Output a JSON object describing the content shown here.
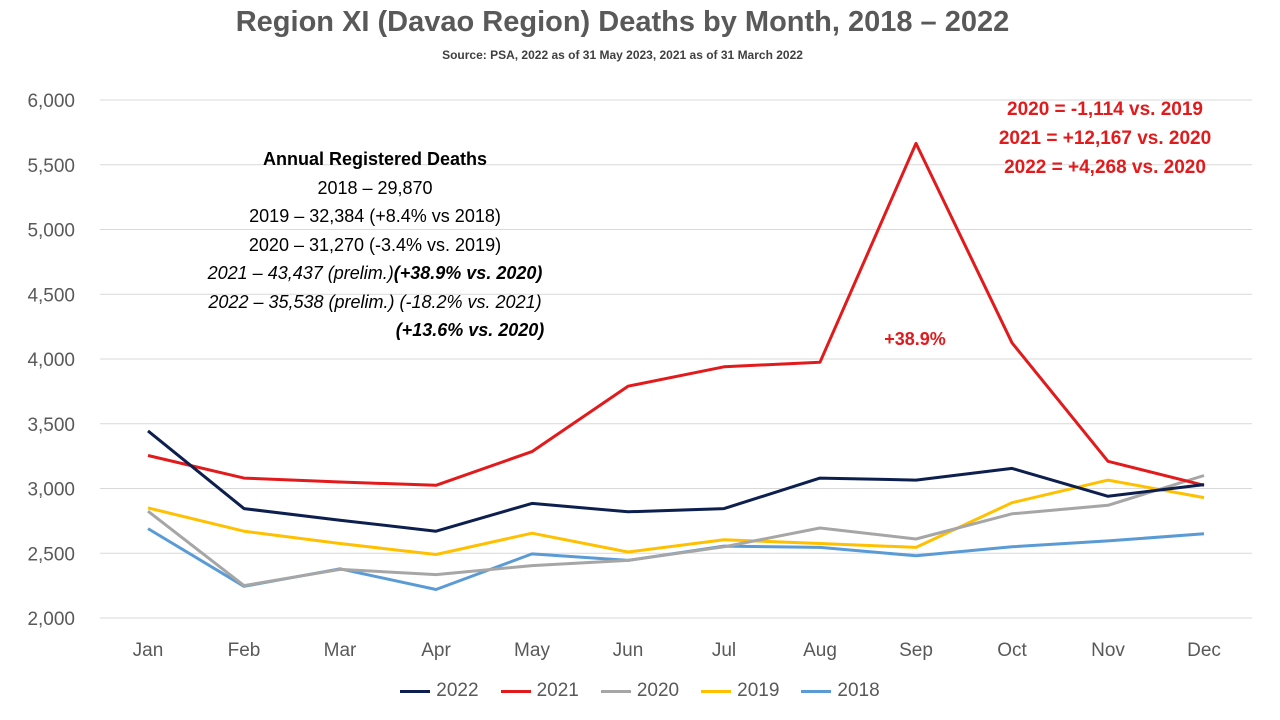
{
  "title": "Region XI (Davao Region) Deaths by Month, 2018 – 2022",
  "subtitle": "Source: PSA, 2022 as of 31 May 2023, 2021 as of 31 March 2022",
  "annotation_box": {
    "header": "Annual Registered Deaths",
    "line1": "2018 – 29,870",
    "line2": "2019 – 32,384 (+8.4% vs 2018)",
    "line3": "2020 – 31,270 (-3.4% vs. 2019)",
    "line4_a": "2021 – 43,437 (prelim.)",
    "line4_b": "(+38.9% vs. 2020)",
    "line5": "2022 – 35,538 (prelim.) (-18.2% vs. 2021)",
    "line6": "(+13.6% vs. 2020)"
  },
  "red_notes": {
    "line1": "2020 = -1,114 vs. 2019",
    "line2": "2021 = +12,167 vs. 2020",
    "line3": "2022 = +4,268 vs. 2020"
  },
  "peak_label": "+38.9%",
  "chart_data": {
    "type": "line",
    "categories": [
      "Jan",
      "Feb",
      "Mar",
      "Apr",
      "May",
      "Jun",
      "Jul",
      "Aug",
      "Sep",
      "Oct",
      "Nov",
      "Dec"
    ],
    "ylim": [
      2000,
      6000
    ],
    "yticks": [
      "2,000",
      "2,500",
      "3,000",
      "3,500",
      "4,000",
      "4,500",
      "5,000",
      "5,500",
      "6,000"
    ],
    "ytick_values": [
      2000,
      2500,
      3000,
      3500,
      4000,
      4500,
      5000,
      5500,
      6000
    ],
    "grid": true,
    "legend_position": "bottom",
    "series": [
      {
        "name": "2022",
        "color": "#0d1f4f",
        "values": [
          3445,
          2845,
          2755,
          2670,
          2885,
          2820,
          2845,
          3080,
          3065,
          3155,
          2940,
          3030
        ]
      },
      {
        "name": "2021",
        "color": "#e31a1c",
        "values": [
          3255,
          3080,
          3050,
          3025,
          3285,
          3790,
          3940,
          3975,
          5665,
          4125,
          3210,
          3025
        ]
      },
      {
        "name": "2020",
        "color": "#a6a6a6",
        "values": [
          2825,
          2250,
          2375,
          2335,
          2405,
          2445,
          2550,
          2695,
          2610,
          2805,
          2870,
          3100
        ]
      },
      {
        "name": "2019",
        "color": "#ffc000",
        "values": [
          2850,
          2670,
          2575,
          2490,
          2655,
          2510,
          2605,
          2575,
          2545,
          2890,
          3065,
          2930
        ]
      },
      {
        "name": "2018",
        "color": "#5b9bd5",
        "values": [
          2690,
          2245,
          2380,
          2220,
          2495,
          2445,
          2555,
          2545,
          2480,
          2550,
          2595,
          2650
        ]
      }
    ]
  }
}
